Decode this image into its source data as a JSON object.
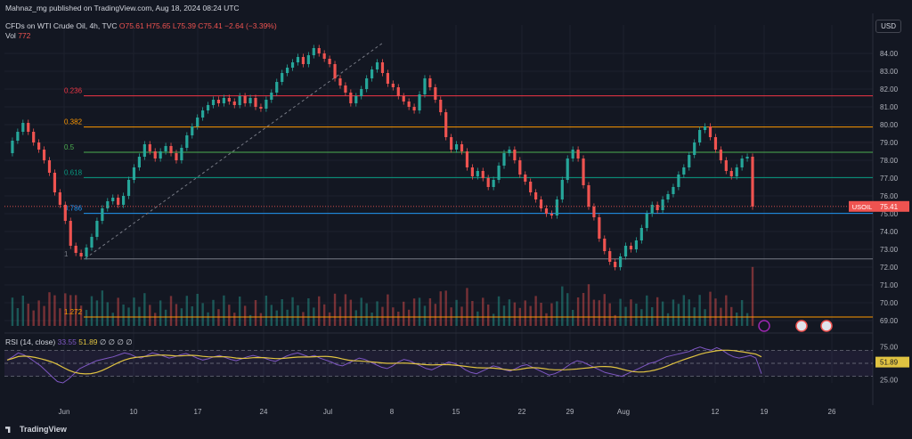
{
  "header": {
    "publisher": "Mahnaz_mg published on TradingView.com, Aug 18, 2024 08:24 UTC",
    "symbol_line": "CFDs on WTI Crude Oil, 4h, TVC",
    "ohlc": {
      "o": "O75.61",
      "h": "H75.65",
      "l": "L75.39",
      "c": "C75.41",
      "chg": "−2.64 (−3.39%)"
    },
    "vol_label": "Vol",
    "vol_value": "772",
    "rsi_label": "RSI (14, close)",
    "rsi_value1": "33.55",
    "rsi_value2": "51.89",
    "rsi_extra": "∅ ∅ ∅ ∅"
  },
  "currency_button": "USD",
  "branding": "TradingView",
  "colors": {
    "bg": "#131722",
    "up": "#26a69a",
    "down": "#ef5350",
    "grid": "#1e222d",
    "rsi_line": "#7e57c2",
    "rsi_ma": "#e0c341"
  },
  "chart_data": {
    "type": "candlestick",
    "price_axis": {
      "ticks": [
        "84.00",
        "83.00",
        "82.00",
        "81.00",
        "80.00",
        "79.00",
        "78.00",
        "77.00",
        "76.00",
        "75.00",
        "74.00",
        "73.00",
        "72.00",
        "71.00",
        "70.00",
        "69.00"
      ],
      "range": [
        68.6,
        85.1
      ]
    },
    "time_axis": {
      "labels": [
        "Jun",
        "10",
        "17",
        "24",
        "Jul",
        "8",
        "15",
        "22",
        "29",
        "Aug",
        "12",
        "19",
        "26"
      ]
    },
    "last_price": {
      "symbol": "USOIL",
      "value": "75.41"
    },
    "fibonacci": [
      {
        "label": "0.236",
        "price": 81.62,
        "color": "#f23645"
      },
      {
        "label": "0.382",
        "price": 79.87,
        "color": "#ff9800"
      },
      {
        "label": "0.5",
        "price": 78.45,
        "color": "#4caf50"
      },
      {
        "label": "0.618",
        "price": 77.03,
        "color": "#089981"
      },
      {
        "label": "0.786",
        "price": 75.02,
        "color": "#2196f3"
      },
      {
        "label": "1",
        "price": 72.46,
        "color": "#787b86"
      },
      {
        "label": "1.272",
        "price": 69.2,
        "color": "#ff9800"
      }
    ],
    "price_path": [
      78.4,
      79.1,
      79.6,
      80.1,
      79.6,
      79.0,
      78.6,
      78.0,
      77.3,
      76.2,
      75.5,
      74.6,
      73.2,
      72.8,
      72.6,
      73.1,
      73.7,
      74.6,
      75.3,
      75.7,
      75.9,
      75.5,
      76.0,
      76.9,
      77.6,
      78.2,
      78.9,
      78.5,
      78.1,
      78.5,
      78.8,
      78.4,
      78.0,
      78.7,
      79.4,
      79.9,
      80.4,
      80.8,
      81.1,
      81.4,
      81.2,
      81.5,
      81.3,
      81.1,
      81.6,
      81.2,
      81.5,
      81.0,
      80.9,
      81.4,
      81.8,
      82.4,
      82.9,
      83.2,
      83.5,
      83.8,
      83.4,
      83.9,
      84.3,
      84.0,
      83.7,
      83.4,
      82.6,
      82.2,
      81.8,
      81.2,
      81.6,
      82.0,
      82.6,
      83.1,
      83.5,
      82.9,
      82.3,
      82.1,
      81.6,
      81.3,
      81.0,
      80.8,
      81.7,
      82.6,
      82.1,
      81.4,
      80.7,
      79.3,
      78.6,
      78.9,
      78.5,
      77.6,
      77.1,
      77.4,
      77.0,
      76.5,
      76.9,
      77.7,
      78.4,
      78.6,
      78.0,
      77.2,
      76.8,
      76.2,
      75.8,
      75.3,
      75.0,
      74.9,
      75.8,
      76.9,
      78.1,
      78.6,
      78.1,
      76.6,
      75.4,
      74.8,
      73.6,
      72.9,
      72.3,
      72.0,
      72.6,
      73.2,
      73.0,
      73.5,
      74.2,
      75.0,
      75.5,
      75.2,
      75.8,
      76.1,
      76.5,
      77.2,
      77.6,
      78.3,
      79.0,
      79.7,
      79.9,
      79.3,
      78.6,
      78.0,
      77.4,
      77.1,
      77.6,
      78.1,
      78.2,
      75.4
    ],
    "rsi": {
      "levels": [
        70,
        50,
        30
      ],
      "axis_ticks": [
        "75.00",
        "50.00",
        "25.00"
      ],
      "last": 33.55,
      "ma_last": 51.89,
      "values": [
        55,
        60,
        66,
        63,
        58,
        52,
        46,
        38,
        30,
        22,
        20,
        26,
        34,
        42,
        46,
        50,
        54,
        56,
        58,
        60,
        63,
        66,
        64,
        60,
        58,
        62,
        66,
        64,
        61,
        58,
        60,
        63,
        65,
        62,
        58,
        55,
        57,
        60,
        62,
        59,
        56,
        54,
        57,
        60,
        62,
        60,
        58,
        55,
        53,
        57,
        61,
        64,
        66,
        63,
        60,
        62,
        58,
        55,
        52,
        48,
        46,
        50,
        54,
        58,
        56,
        52,
        48,
        44,
        42,
        46,
        52,
        56,
        54,
        50,
        46,
        42,
        40,
        44,
        48,
        52,
        50,
        46,
        40,
        36,
        34,
        38,
        42,
        46,
        44,
        40,
        38,
        42,
        46,
        48,
        44,
        40,
        36,
        32,
        34,
        38,
        44,
        50,
        54,
        52,
        48,
        44,
        40,
        36,
        34,
        32,
        30,
        34,
        38,
        42,
        46,
        50,
        52,
        56,
        60,
        62,
        64,
        66,
        68,
        72,
        75,
        72,
        70,
        74,
        70,
        64,
        60,
        58,
        60,
        62,
        58,
        34
      ]
    }
  }
}
